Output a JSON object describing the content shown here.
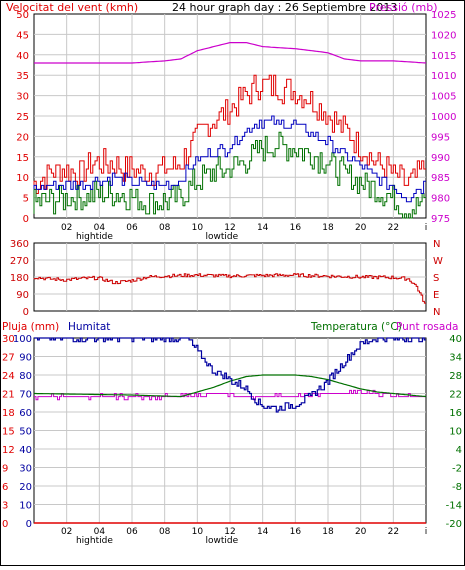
{
  "header": {
    "wind_title": "Velocitat del vent (kmh)",
    "main_title": "24 hour graph day : 26 Septiembre 2013",
    "pressure_title": "Pressió (mb)"
  },
  "colors": {
    "wind_gust": "#e00000",
    "wind_avg": "#0000c0",
    "wind_min": "#007000",
    "pressure": "#cc00cc",
    "direction": "#cc0000",
    "rain": "#e00000",
    "humidity": "#0000a0",
    "temperature": "#007000",
    "dewpoint": "#cc00cc",
    "grid": "#c8c8c8"
  },
  "x_ticks": [
    "02",
    "04",
    "06",
    "08",
    "10",
    "12",
    "14",
    "16",
    "18",
    "20",
    "22",
    "i"
  ],
  "tide_labels": {
    "high": "hightide",
    "low": "lowtide"
  },
  "chart_data": [
    {
      "type": "line",
      "id": "wind_pressure",
      "title": "24 hour graph day : 26 Septiembre 2013",
      "ylabel_left": "Velocitat del vent (kmh)",
      "ylabel_right": "Pressió (mb)",
      "x_range": [
        0,
        24
      ],
      "ylim_left": [
        0,
        50
      ],
      "ylim_right": [
        975,
        1025
      ],
      "left_ticks": [
        "0",
        "5",
        "10",
        "15",
        "20",
        "25",
        "30",
        "35",
        "40",
        "45",
        "50"
      ],
      "right_ticks": [
        "975",
        "980",
        "985",
        "990",
        "995",
        "1000",
        "1005",
        "1010",
        "1015",
        "1020",
        "1025"
      ],
      "grid": true,
      "series": [
        {
          "name": "gust",
          "axis": "left",
          "points": [
            [
              0,
              8
            ],
            [
              1,
              11
            ],
            [
              2,
              12
            ],
            [
              3,
              11
            ],
            [
              4,
              14
            ],
            [
              5,
              13
            ],
            [
              6,
              12
            ],
            [
              7,
              11
            ],
            [
              8,
              12
            ],
            [
              9,
              13
            ],
            [
              10,
              19
            ],
            [
              11,
              24
            ],
            [
              12,
              26
            ],
            [
              13,
              30
            ],
            [
              14,
              33
            ],
            [
              15,
              32
            ],
            [
              16,
              31
            ],
            [
              17,
              29
            ],
            [
              18,
              26
            ],
            [
              19,
              22
            ],
            [
              20,
              18
            ],
            [
              21,
              14
            ],
            [
              22,
              11
            ],
            [
              23,
              8
            ],
            [
              24,
              12
            ]
          ]
        },
        {
          "name": "average",
          "axis": "left",
          "points": [
            [
              0,
              7
            ],
            [
              1,
              8
            ],
            [
              2,
              8
            ],
            [
              3,
              8
            ],
            [
              4,
              9
            ],
            [
              5,
              10
            ],
            [
              6,
              9
            ],
            [
              7,
              8
            ],
            [
              8,
              8
            ],
            [
              9,
              9
            ],
            [
              10,
              14
            ],
            [
              11,
              16
            ],
            [
              12,
              17
            ],
            [
              13,
              21
            ],
            [
              14,
              24
            ],
            [
              15,
              23
            ],
            [
              16,
              23
            ],
            [
              17,
              21
            ],
            [
              18,
              19
            ],
            [
              19,
              16
            ],
            [
              20,
              13
            ],
            [
              21,
              10
            ],
            [
              22,
              8
            ],
            [
              23,
              5
            ],
            [
              24,
              8
            ]
          ]
        },
        {
          "name": "minimum",
          "axis": "left",
          "points": [
            [
              0,
              4
            ],
            [
              1,
              4
            ],
            [
              2,
              5
            ],
            [
              3,
              5
            ],
            [
              4,
              6
            ],
            [
              5,
              6
            ],
            [
              6,
              5
            ],
            [
              7,
              4
            ],
            [
              8,
              4
            ],
            [
              9,
              5
            ],
            [
              10,
              9
            ],
            [
              11,
              11
            ],
            [
              12,
              12
            ],
            [
              13,
              14
            ],
            [
              14,
              17
            ],
            [
              15,
              18
            ],
            [
              16,
              17
            ],
            [
              17,
              16
            ],
            [
              18,
              14
            ],
            [
              19,
              11
            ],
            [
              20,
              9
            ],
            [
              21,
              7
            ],
            [
              22,
              5
            ],
            [
              23,
              2
            ],
            [
              24,
              4
            ]
          ]
        },
        {
          "name": "pressure",
          "axis": "right",
          "points": [
            [
              0,
              1013
            ],
            [
              6,
              1013
            ],
            [
              8,
              1013.5
            ],
            [
              9,
              1014
            ],
            [
              10,
              1016
            ],
            [
              11,
              1017
            ],
            [
              12,
              1018
            ],
            [
              13,
              1018
            ],
            [
              14,
              1017
            ],
            [
              16,
              1016.5
            ],
            [
              17,
              1016
            ],
            [
              18,
              1015.5
            ],
            [
              19,
              1014
            ],
            [
              20,
              1013.5
            ],
            [
              22,
              1013.5
            ],
            [
              24,
              1013
            ]
          ]
        }
      ]
    },
    {
      "type": "line",
      "id": "direction",
      "ylim": [
        0,
        360
      ],
      "left_ticks": [
        "0",
        "90",
        "180",
        "270",
        "360"
      ],
      "right_labels": [
        "N",
        "W",
        "S",
        "E",
        "N"
      ],
      "grid": true,
      "series": [
        {
          "name": "direction",
          "points": [
            [
              0,
              180
            ],
            [
              1,
              170
            ],
            [
              2,
              165
            ],
            [
              3,
              172
            ],
            [
              4,
              175
            ],
            [
              5,
              150
            ],
            [
              6,
              160
            ],
            [
              7,
              180
            ],
            [
              8,
              185
            ],
            [
              10,
              190
            ],
            [
              12,
              185
            ],
            [
              14,
              188
            ],
            [
              16,
              190
            ],
            [
              18,
              185
            ],
            [
              20,
              180
            ],
            [
              22,
              178
            ],
            [
              23,
              170
            ],
            [
              23.5,
              130
            ],
            [
              24,
              40
            ]
          ]
        }
      ]
    },
    {
      "type": "line",
      "id": "rain_humidity_temp",
      "titles": {
        "rain": "Pluja (mm)",
        "humidity": "Humitat",
        "temperature": "Temperatura (°C)",
        "dewpoint": "Punt rosada"
      },
      "ylim_rain": [
        0,
        30
      ],
      "ylim_humidity": [
        0,
        100
      ],
      "ylim_temp": [
        -20,
        40
      ],
      "rain_ticks": [
        "0",
        "3",
        "6",
        "9",
        "12",
        "15",
        "18",
        "21",
        "24",
        "27",
        "30"
      ],
      "humidity_ticks": [
        "0",
        "10",
        "20",
        "30",
        "40",
        "50",
        "60",
        "70",
        "80",
        "90",
        "100"
      ],
      "temp_ticks": [
        "-20",
        "-14",
        "-8",
        "-2",
        "4",
        "10",
        "16",
        "22",
        "28",
        "34",
        "40"
      ],
      "grid": true,
      "series": [
        {
          "name": "humidity",
          "points": [
            [
              0,
              100
            ],
            [
              9.5,
              100
            ],
            [
              10,
              94
            ],
            [
              11,
              83
            ],
            [
              12,
              78
            ],
            [
              13,
              73
            ],
            [
              14,
              64
            ],
            [
              15,
              62
            ],
            [
              16,
              64
            ],
            [
              17,
              68
            ],
            [
              18,
              76
            ],
            [
              19,
              86
            ],
            [
              20,
              96
            ],
            [
              21,
              100
            ],
            [
              24,
              100
            ]
          ]
        },
        {
          "name": "temperature",
          "points": [
            [
              0,
              22
            ],
            [
              6,
              21.5
            ],
            [
              9,
              21
            ],
            [
              10,
              22.5
            ],
            [
              11,
              24
            ],
            [
              12,
              26
            ],
            [
              13,
              27.5
            ],
            [
              14,
              28
            ],
            [
              15,
              28
            ],
            [
              16,
              28
            ],
            [
              17,
              27.5
            ],
            [
              18,
              26.5
            ],
            [
              19,
              25
            ],
            [
              20,
              23.5
            ],
            [
              21,
              22.5
            ],
            [
              22,
              22
            ],
            [
              24,
              21
            ]
          ]
        },
        {
          "name": "dewpoint",
          "points": [
            [
              0,
              21
            ],
            [
              8,
              21
            ],
            [
              9,
              21
            ],
            [
              10,
              21.5
            ],
            [
              11,
              22
            ],
            [
              12,
              21.5
            ],
            [
              13,
              21
            ],
            [
              14,
              21
            ],
            [
              15,
              21.5
            ],
            [
              16,
              21
            ],
            [
              17,
              21.5
            ],
            [
              18,
              22
            ],
            [
              19,
              22
            ],
            [
              20,
              22.5
            ],
            [
              21,
              22
            ],
            [
              22,
              21.5
            ],
            [
              24,
              21
            ]
          ]
        },
        {
          "name": "rain",
          "points": [
            [
              0,
              0
            ],
            [
              24,
              0
            ]
          ]
        }
      ]
    }
  ]
}
